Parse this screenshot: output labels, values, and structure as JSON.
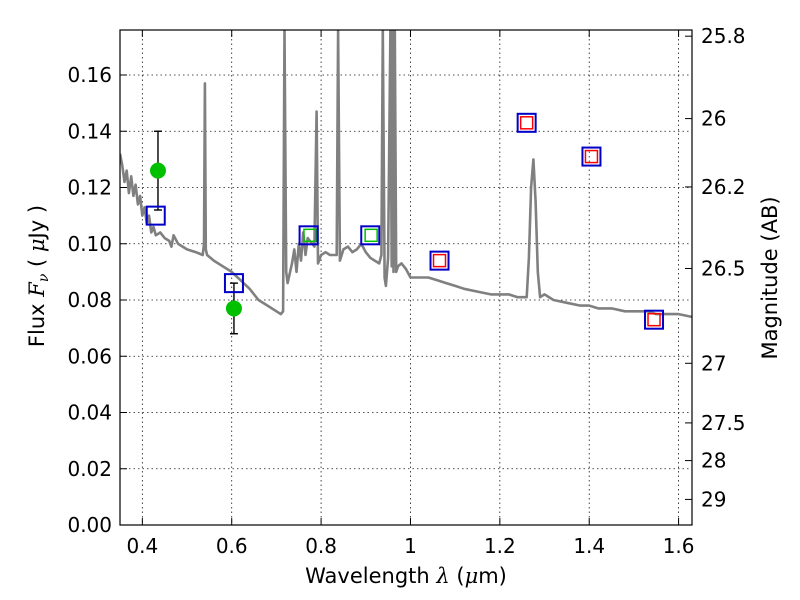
{
  "chart_data": {
    "type": "scatter",
    "title": "",
    "xlabel": "Wavelength  λ (μm)",
    "ylabel": "Flux  Fν  ( μJy )",
    "ylabel_right": "Magnitude (AB)",
    "xlim": [
      0.35,
      1.63
    ],
    "ylim": [
      0.0,
      0.176
    ],
    "grid": true,
    "x_ticks": [
      {
        "value": 0.4,
        "label": "0.4"
      },
      {
        "value": 0.6,
        "label": "0.6"
      },
      {
        "value": 0.8,
        "label": "0.8"
      },
      {
        "value": 1.0,
        "label": "1"
      },
      {
        "value": 1.2,
        "label": "1.2"
      },
      {
        "value": 1.4,
        "label": "1.4"
      },
      {
        "value": 1.6,
        "label": "1.6"
      }
    ],
    "y_ticks": [
      {
        "value": 0.0,
        "label": "0.00"
      },
      {
        "value": 0.02,
        "label": "0.02"
      },
      {
        "value": 0.04,
        "label": "0.04"
      },
      {
        "value": 0.06,
        "label": "0.06"
      },
      {
        "value": 0.08,
        "label": "0.08"
      },
      {
        "value": 0.1,
        "label": "0.10"
      },
      {
        "value": 0.12,
        "label": "0.12"
      },
      {
        "value": 0.14,
        "label": "0.14"
      },
      {
        "value": 0.16,
        "label": "0.16"
      }
    ],
    "mag_ticks": [
      {
        "label": "25.8",
        "flux": 0.1738
      },
      {
        "label": "26",
        "flux": 0.1445
      },
      {
        "label": "26.2",
        "flux": 0.1202
      },
      {
        "label": "26.5",
        "flux": 0.0912
      },
      {
        "label": "27",
        "flux": 0.0575
      },
      {
        "label": "27.5",
        "flux": 0.0363
      },
      {
        "label": "28",
        "flux": 0.0229
      },
      {
        "label": "29",
        "flux": 0.0091
      }
    ],
    "series": [
      {
        "kind": "line",
        "color": "#808080",
        "points": [
          [
            0.35,
            0.132
          ],
          [
            0.355,
            0.128
          ],
          [
            0.36,
            0.122
          ],
          [
            0.365,
            0.126
          ],
          [
            0.37,
            0.118
          ],
          [
            0.375,
            0.124
          ],
          [
            0.38,
            0.117
          ],
          [
            0.385,
            0.121
          ],
          [
            0.39,
            0.114
          ],
          [
            0.395,
            0.117
          ],
          [
            0.4,
            0.11
          ],
          [
            0.405,
            0.113
          ],
          [
            0.41,
            0.107
          ],
          [
            0.415,
            0.11
          ],
          [
            0.42,
            0.104
          ],
          [
            0.425,
            0.106
          ],
          [
            0.43,
            0.103
          ],
          [
            0.44,
            0.104
          ],
          [
            0.45,
            0.102
          ],
          [
            0.46,
            0.101
          ],
          [
            0.465,
            0.099
          ],
          [
            0.47,
            0.103
          ],
          [
            0.48,
            0.1
          ],
          [
            0.49,
            0.099
          ],
          [
            0.5,
            0.098
          ],
          [
            0.52,
            0.097
          ],
          [
            0.535,
            0.096
          ],
          [
            0.538,
            0.1
          ],
          [
            0.54,
            0.157
          ],
          [
            0.542,
            0.098
          ],
          [
            0.545,
            0.096
          ],
          [
            0.56,
            0.094
          ],
          [
            0.58,
            0.092
          ],
          [
            0.6,
            0.09
          ],
          [
            0.62,
            0.087
          ],
          [
            0.64,
            0.084
          ],
          [
            0.66,
            0.08
          ],
          [
            0.68,
            0.078
          ],
          [
            0.7,
            0.076
          ],
          [
            0.71,
            0.075
          ],
          [
            0.715,
            0.076
          ],
          [
            0.718,
            0.176
          ],
          [
            0.722,
            0.09
          ],
          [
            0.725,
            0.086
          ],
          [
            0.735,
            0.093
          ],
          [
            0.74,
            0.098
          ],
          [
            0.745,
            0.09
          ],
          [
            0.75,
            0.1
          ],
          [
            0.755,
            0.094
          ],
          [
            0.76,
            0.104
          ],
          [
            0.765,
            0.096
          ],
          [
            0.77,
            0.102
          ],
          [
            0.775,
            0.101
          ],
          [
            0.78,
            0.1
          ],
          [
            0.785,
            0.099
          ],
          [
            0.79,
            0.147
          ],
          [
            0.793,
            0.093
          ],
          [
            0.8,
            0.096
          ],
          [
            0.81,
            0.097
          ],
          [
            0.82,
            0.096
          ],
          [
            0.835,
            0.096
          ],
          [
            0.838,
            0.176
          ],
          [
            0.842,
            0.094
          ],
          [
            0.85,
            0.098
          ],
          [
            0.86,
            0.099
          ],
          [
            0.87,
            0.097
          ],
          [
            0.88,
            0.098
          ],
          [
            0.89,
            0.1
          ],
          [
            0.9,
            0.097
          ],
          [
            0.91,
            0.095
          ],
          [
            0.92,
            0.094
          ],
          [
            0.93,
            0.093
          ],
          [
            0.935,
            0.096
          ],
          [
            0.938,
            0.176
          ],
          [
            0.942,
            0.088
          ],
          [
            0.945,
            0.085
          ],
          [
            0.95,
            0.095
          ],
          [
            0.955,
            0.176
          ],
          [
            0.958,
            0.092
          ],
          [
            0.96,
            0.176
          ],
          [
            0.962,
            0.09
          ],
          [
            0.965,
            0.176
          ],
          [
            0.968,
            0.09
          ],
          [
            0.972,
            0.092
          ],
          [
            0.98,
            0.093
          ],
          [
            0.99,
            0.091
          ],
          [
            1.0,
            0.088
          ],
          [
            1.02,
            0.088
          ],
          [
            1.04,
            0.088
          ],
          [
            1.06,
            0.087
          ],
          [
            1.08,
            0.086
          ],
          [
            1.1,
            0.085
          ],
          [
            1.12,
            0.084
          ],
          [
            1.15,
            0.083
          ],
          [
            1.18,
            0.082
          ],
          [
            1.2,
            0.082
          ],
          [
            1.22,
            0.082
          ],
          [
            1.24,
            0.081
          ],
          [
            1.26,
            0.081
          ],
          [
            1.265,
            0.095
          ],
          [
            1.27,
            0.12
          ],
          [
            1.275,
            0.13
          ],
          [
            1.28,
            0.115
          ],
          [
            1.285,
            0.09
          ],
          [
            1.29,
            0.081
          ],
          [
            1.3,
            0.082
          ],
          [
            1.32,
            0.08
          ],
          [
            1.35,
            0.079
          ],
          [
            1.38,
            0.078
          ],
          [
            1.4,
            0.078
          ],
          [
            1.42,
            0.077
          ],
          [
            1.45,
            0.077
          ],
          [
            1.48,
            0.076
          ],
          [
            1.5,
            0.076
          ],
          [
            1.53,
            0.076
          ],
          [
            1.55,
            0.075
          ],
          [
            1.58,
            0.075
          ],
          [
            1.6,
            0.075
          ],
          [
            1.63,
            0.074
          ]
        ]
      },
      {
        "kind": "errorbar",
        "color": "#000000",
        "points": [
          {
            "x": 0.435,
            "low": 0.112,
            "high": 0.14
          },
          {
            "x": 0.605,
            "low": 0.068,
            "high": 0.086
          }
        ]
      },
      {
        "kind": "marker",
        "shape": "circle",
        "color": "#00c000",
        "points": [
          [
            0.435,
            0.126
          ],
          [
            0.605,
            0.077
          ]
        ]
      },
      {
        "kind": "marker",
        "shape": "square",
        "color": "#00c000",
        "points": [
          [
            0.775,
            0.103
          ],
          [
            0.912,
            0.103
          ]
        ]
      },
      {
        "kind": "marker",
        "shape": "square",
        "color": "#ff0000",
        "points": [
          [
            1.065,
            0.094
          ],
          [
            1.26,
            0.143
          ],
          [
            1.405,
            0.131
          ],
          [
            1.545,
            0.073
          ]
        ]
      },
      {
        "kind": "marker",
        "shape": "square",
        "color": "#0000c8",
        "points": [
          [
            0.43,
            0.11
          ],
          [
            0.605,
            0.086
          ],
          [
            0.772,
            0.103
          ],
          [
            0.91,
            0.103
          ],
          [
            1.065,
            0.094
          ],
          [
            1.26,
            0.143
          ],
          [
            1.405,
            0.131
          ],
          [
            1.545,
            0.073
          ]
        ]
      }
    ]
  }
}
